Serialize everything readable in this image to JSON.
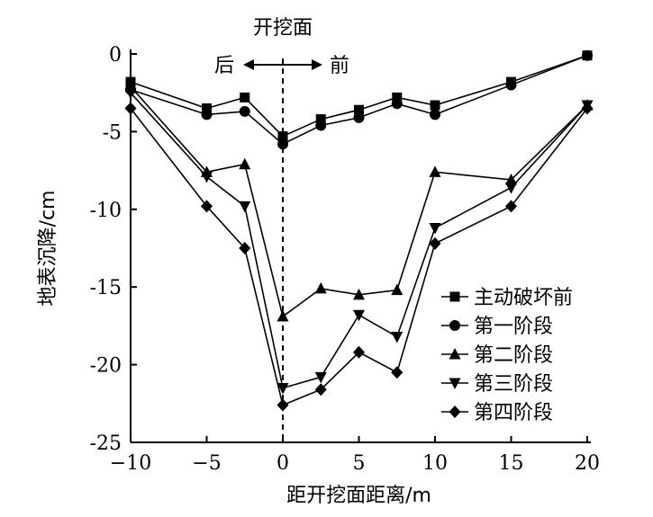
{
  "chart_data": {
    "type": "line",
    "xlabel": "距开挖面距离/m",
    "ylabel": "地表沉降/cm",
    "xlim": [
      -10,
      20
    ],
    "ylim": [
      -25,
      0
    ],
    "xticks": [
      -10,
      -5,
      0,
      5,
      10,
      15,
      20
    ],
    "yticks": [
      0,
      -5,
      -10,
      -15,
      -20,
      -25
    ],
    "xtick_labels": [
      "−10",
      "−5",
      "0",
      "5",
      "10",
      "15",
      "20"
    ],
    "ytick_labels": [
      "0",
      "-5",
      "-10",
      "-15",
      "-20",
      "-25"
    ],
    "grid": false,
    "legend_position": "lower-right",
    "annotations": {
      "face_label": "开挖面",
      "left_label": "后",
      "right_label": "前",
      "face_x": 0
    },
    "x": [
      -10,
      -5,
      -2.5,
      0,
      2.5,
      5,
      7.5,
      10,
      15,
      20
    ],
    "series": [
      {
        "name": "主动破坏前",
        "marker": "square",
        "values": [
          -1.8,
          -3.5,
          -2.8,
          -5.3,
          -4.2,
          -3.6,
          -2.8,
          -3.3,
          -1.8,
          -0.1
        ]
      },
      {
        "name": "第一阶段",
        "marker": "circle",
        "values": [
          -2.3,
          -3.9,
          -3.7,
          -5.8,
          -4.6,
          -4.1,
          -3.2,
          -3.9,
          -2.0,
          -0.1
        ]
      },
      {
        "name": "第二阶段",
        "marker": "triangle-up",
        "values": [
          -2.1,
          -7.6,
          -7.1,
          -16.9,
          -15.1,
          -15.5,
          -15.2,
          -7.6,
          -8.1,
          -3.3
        ]
      },
      {
        "name": "第三阶段",
        "marker": "triangle-down",
        "values": [
          -2.5,
          -7.9,
          -9.8,
          -21.5,
          -20.8,
          -16.8,
          -18.2,
          -11.2,
          -8.6,
          -3.3
        ]
      },
      {
        "name": "第四阶段",
        "marker": "diamond",
        "values": [
          -3.5,
          -9.8,
          -12.5,
          -22.6,
          -21.6,
          -19.2,
          -20.5,
          -12.2,
          -9.8,
          -3.5
        ]
      }
    ]
  }
}
